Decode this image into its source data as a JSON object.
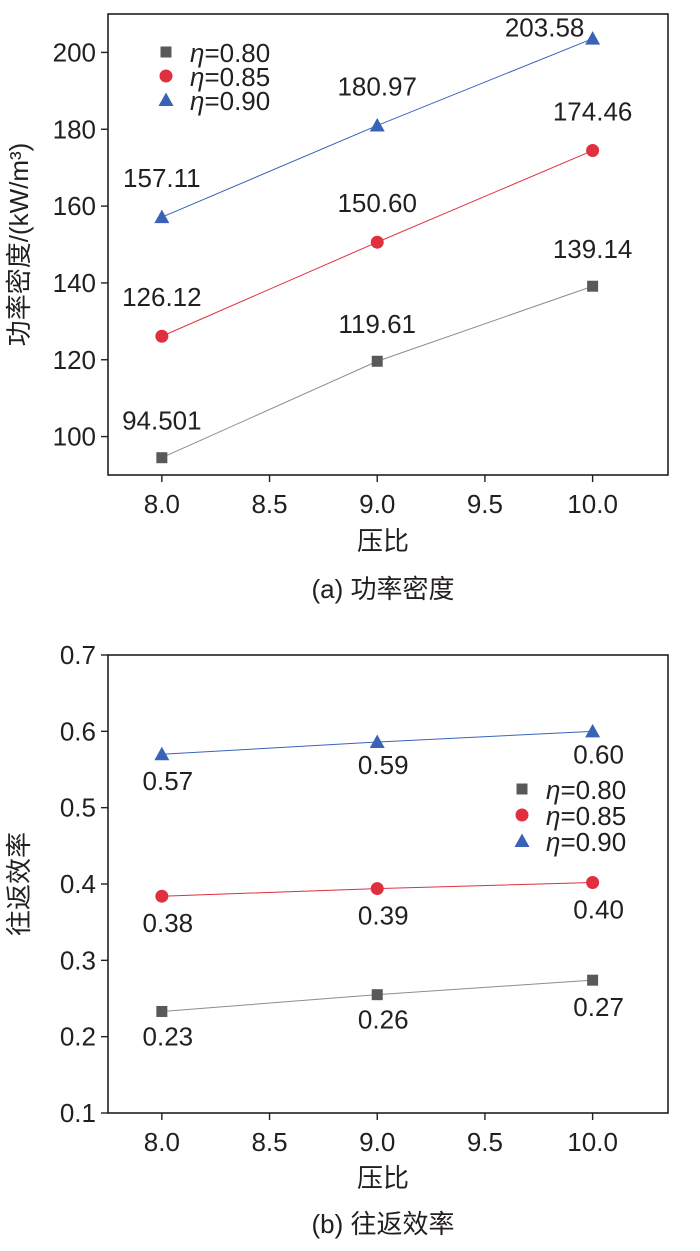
{
  "chart_data": [
    {
      "type": "line",
      "caption": "(a) 功率密度",
      "xlabel": "压比",
      "ylabel": "功率密度/(kW/m³)",
      "xlim": [
        7.75,
        10.35
      ],
      "ylim": [
        90,
        210
      ],
      "xticks": [
        "8.0",
        "8.5",
        "9.0",
        "9.5",
        "10.0"
      ],
      "yticks": [
        "100",
        "120",
        "140",
        "160",
        "180",
        "200"
      ],
      "legend_position": "top-left",
      "x": [
        8.0,
        9.0,
        10.0
      ],
      "series": [
        {
          "name": "η=0.80",
          "symbol": "η",
          "suffix": "=0.80",
          "marker": "square",
          "color": "#595959",
          "line_color": "#8c8c8c",
          "values": [
            94.501,
            119.61,
            139.14
          ],
          "labels": [
            "94.501",
            "119.61",
            "139.14"
          ]
        },
        {
          "name": "η=0.85",
          "symbol": "η",
          "suffix": "=0.85",
          "marker": "circle",
          "color": "#e0303f",
          "line_color": "#e0303f",
          "values": [
            126.12,
            150.6,
            174.46
          ],
          "labels": [
            "126.12",
            "150.60",
            "174.46"
          ]
        },
        {
          "name": "η=0.90",
          "symbol": "η",
          "suffix": "=0.90",
          "marker": "triangle",
          "color": "#3a63b8",
          "line_color": "#3a63b8",
          "values": [
            157.11,
            180.97,
            203.58
          ],
          "labels": [
            "157.11",
            "180.97",
            "203.58"
          ]
        }
      ]
    },
    {
      "type": "line",
      "caption": "(b) 往返效率",
      "xlabel": "压比",
      "ylabel": "往返效率",
      "xlim": [
        7.75,
        10.35
      ],
      "ylim": [
        0.1,
        0.7
      ],
      "xticks": [
        "8.0",
        "8.5",
        "9.0",
        "9.5",
        "10.0"
      ],
      "yticks": [
        "0.1",
        "0.2",
        "0.3",
        "0.4",
        "0.5",
        "0.6",
        "0.7"
      ],
      "legend_position": "right",
      "x": [
        8.0,
        9.0,
        10.0
      ],
      "series": [
        {
          "name": "η=0.80",
          "symbol": "η",
          "suffix": "=0.80",
          "marker": "square",
          "color": "#595959",
          "line_color": "#8c8c8c",
          "values": [
            0.233,
            0.255,
            0.274
          ],
          "labels": [
            "0.23",
            "0.26",
            "0.27"
          ]
        },
        {
          "name": "η=0.85",
          "symbol": "η",
          "suffix": "=0.85",
          "marker": "circle",
          "color": "#e0303f",
          "line_color": "#e0303f",
          "values": [
            0.384,
            0.394,
            0.402
          ],
          "labels": [
            "0.38",
            "0.39",
            "0.40"
          ]
        },
        {
          "name": "η=0.90",
          "symbol": "η",
          "suffix": "=0.90",
          "marker": "triangle",
          "color": "#3a63b8",
          "line_color": "#3a63b8",
          "values": [
            0.57,
            0.586,
            0.6
          ],
          "labels": [
            "0.57",
            "0.59",
            "0.60"
          ]
        }
      ]
    }
  ]
}
